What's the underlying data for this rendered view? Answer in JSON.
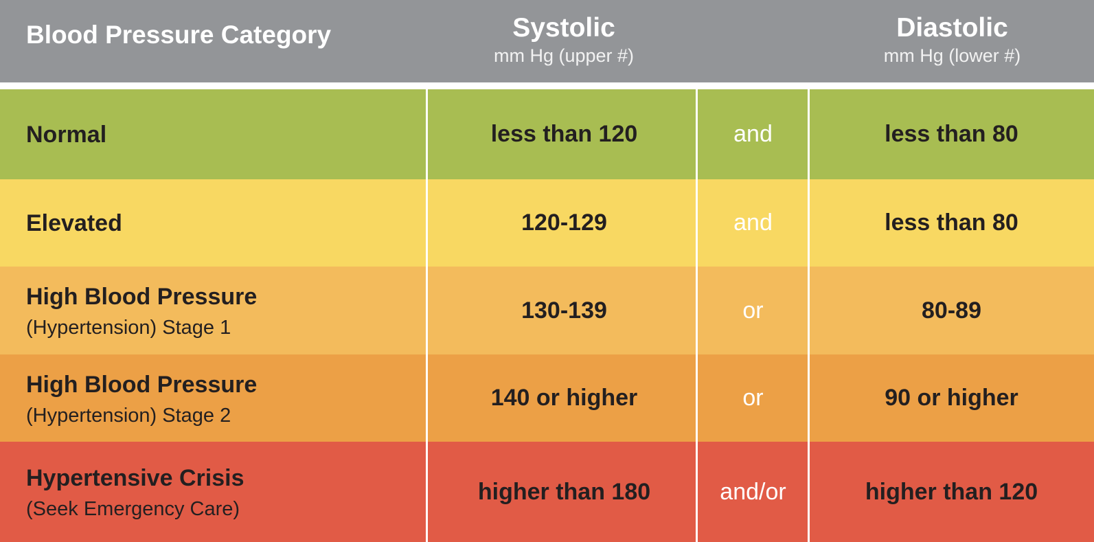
{
  "header": {
    "category_title": "Blood Pressure Category",
    "systolic_title": "Systolic",
    "systolic_sub": "mm Hg (upper #)",
    "diastolic_title": "Diastolic",
    "diastolic_sub": "mm Hg (lower #)",
    "color": "#939598"
  },
  "rows": [
    {
      "category": "Normal",
      "note": "",
      "systolic": "less than 120",
      "connector": "and",
      "diastolic": "less than 80",
      "color": "#a8bd52"
    },
    {
      "category": "Elevated",
      "note": "",
      "systolic": "120-129",
      "connector": "and",
      "diastolic": "less than 80",
      "color": "#f8d862"
    },
    {
      "category": "High Blood Pressure",
      "note": "(Hypertension) Stage 1",
      "systolic": "130-139",
      "connector": "or",
      "diastolic": "80-89",
      "color": "#f3bb5c"
    },
    {
      "category": "High Blood Pressure",
      "note": "(Hypertension) Stage 2",
      "systolic": "140 or higher",
      "connector": "or",
      "diastolic": "90 or higher",
      "color": "#eca046"
    },
    {
      "category": "Hypertensive Crisis",
      "note": "(Seek Emergency Care)",
      "systolic": "higher than 180",
      "connector": "and/or",
      "diastolic": "higher than 120",
      "color": "#e15b46"
    }
  ]
}
